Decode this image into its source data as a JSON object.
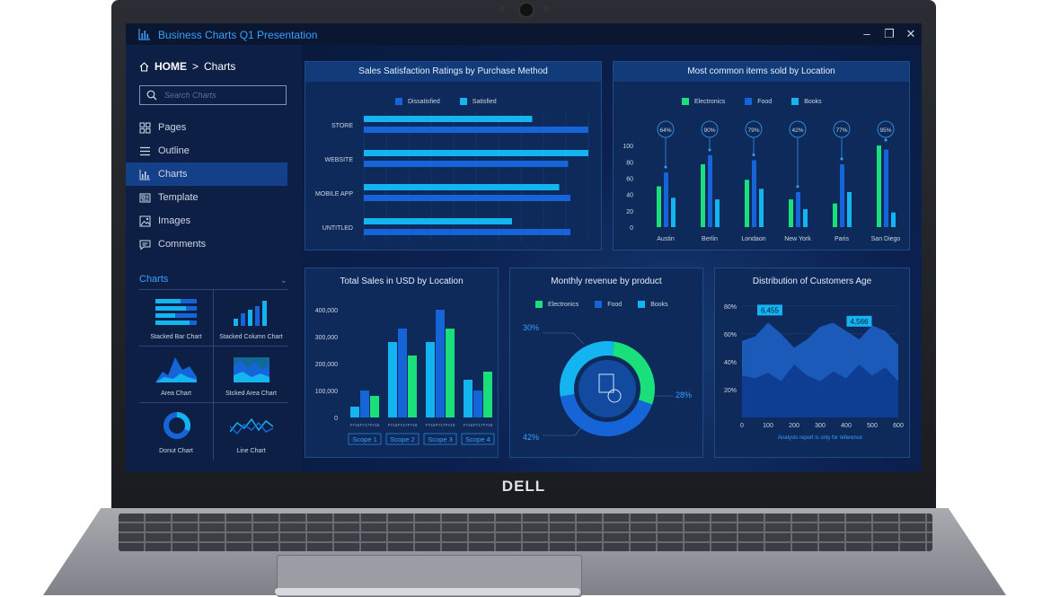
{
  "window": {
    "title": "Business Charts Q1 Presentation",
    "controls": [
      "minimize-icon",
      "restore-icon",
      "close-icon"
    ]
  },
  "breadcrumb": {
    "home": "HOME",
    "separator": ">",
    "current": "Charts"
  },
  "search": {
    "placeholder": "Search Charts"
  },
  "nav": [
    {
      "label": "Pages",
      "icon": "grid-icon"
    },
    {
      "label": "Outline",
      "icon": "list-icon"
    },
    {
      "label": "Charts",
      "icon": "bar-chart-icon",
      "active": true
    },
    {
      "label": "Template",
      "icon": "template-icon"
    },
    {
      "label": "Images",
      "icon": "image-icon"
    },
    {
      "label": "Comments",
      "icon": "comment-icon"
    }
  ],
  "charts_section": {
    "title": "Charts",
    "items": [
      "Stacked Bar Chart",
      "Stacked Column Chart",
      "Area Chart",
      "Stcked Area Chart",
      "Donut Chart",
      "Line Chart"
    ]
  },
  "colors": {
    "accent": "#39a0ff",
    "green": "#19e07a",
    "blue": "#1565d8",
    "cyan": "#14b4f0"
  },
  "brand": "DELL",
  "chart_data": [
    {
      "type": "bar",
      "title": "Sales Satisfaction Ratings by Purchase Method",
      "orientation": "horizontal",
      "categories": [
        "STORE",
        "WEBSITE",
        "MOBILE APP",
        "UNTITLED"
      ],
      "series": [
        {
          "name": "Dissatisfied",
          "values": [
            100,
            91,
            92,
            92
          ]
        },
        {
          "name": "Satisfied",
          "values": [
            75,
            100,
            87,
            66
          ]
        }
      ],
      "legend": "top"
    },
    {
      "type": "bar",
      "title": "Most common items sold by Location",
      "categories": [
        "Austin",
        "Berlin",
        "Londaon",
        "New York",
        "Paris",
        "San Diego"
      ],
      "series": [
        {
          "name": "Electronics",
          "values": [
            50,
            77,
            58,
            34,
            29,
            100
          ]
        },
        {
          "name": "Food",
          "values": [
            67,
            88,
            82,
            43,
            77,
            95
          ]
        },
        {
          "name": "Books",
          "values": [
            36,
            34,
            47,
            22,
            43,
            18
          ]
        }
      ],
      "annotations": [
        "64%",
        "90%",
        "79%",
        "42%",
        "77%",
        "95%"
      ],
      "yticks": [
        0,
        20,
        40,
        60,
        80,
        100
      ],
      "ylim": [
        0,
        110
      ],
      "legend": "top"
    },
    {
      "type": "bar",
      "title": "Total Sales in USD by Location",
      "groups": [
        "Scope 1",
        "Scope 2",
        "Scope 3",
        "Scope 4"
      ],
      "categories": [
        "FY16",
        "FY17",
        "FY18"
      ],
      "series": [
        {
          "group": "Scope 1",
          "values": [
            40000,
            100000,
            80000
          ]
        },
        {
          "group": "Scope 2",
          "values": [
            280000,
            330000,
            230000
          ]
        },
        {
          "group": "Scope 3",
          "values": [
            280000,
            400000,
            330000
          ]
        },
        {
          "group": "Scope 4",
          "values": [
            140000,
            100000,
            170000
          ]
        }
      ],
      "yticks": [
        "0",
        "100,000",
        "200,000",
        "300,000",
        "400,000"
      ],
      "ylim": [
        0,
        420000
      ]
    },
    {
      "type": "pie",
      "title": "Monthly revenue by product",
      "donut": true,
      "slices": [
        {
          "name": "Electronics",
          "value": 28,
          "label": "28%"
        },
        {
          "name": "Food",
          "value": 42,
          "label": "42%"
        },
        {
          "name": "Books",
          "value": 30,
          "label": "30%"
        }
      ],
      "legend": "top"
    },
    {
      "type": "area",
      "title": "Distribution of Customers Age",
      "x": [
        0,
        50,
        100,
        150,
        200,
        250,
        300,
        350,
        400,
        450,
        500,
        550,
        600
      ],
      "series": [
        {
          "values": [
            55,
            58,
            68,
            60,
            50,
            56,
            65,
            68,
            62,
            56,
            66,
            62,
            52
          ]
        },
        {
          "values": [
            30,
            28,
            32,
            26,
            38,
            30,
            26,
            33,
            28,
            38,
            30,
            36,
            26
          ]
        }
      ],
      "xticks": [
        "0",
        "100",
        "200",
        "300",
        "400",
        "500",
        "600"
      ],
      "yticks": [
        "20%",
        "40%",
        "60%",
        "80%"
      ],
      "ylim": [
        0,
        85
      ],
      "annotations": [
        "6,455",
        "4,566"
      ],
      "footnote": "Analysis report is only for reference"
    }
  ]
}
